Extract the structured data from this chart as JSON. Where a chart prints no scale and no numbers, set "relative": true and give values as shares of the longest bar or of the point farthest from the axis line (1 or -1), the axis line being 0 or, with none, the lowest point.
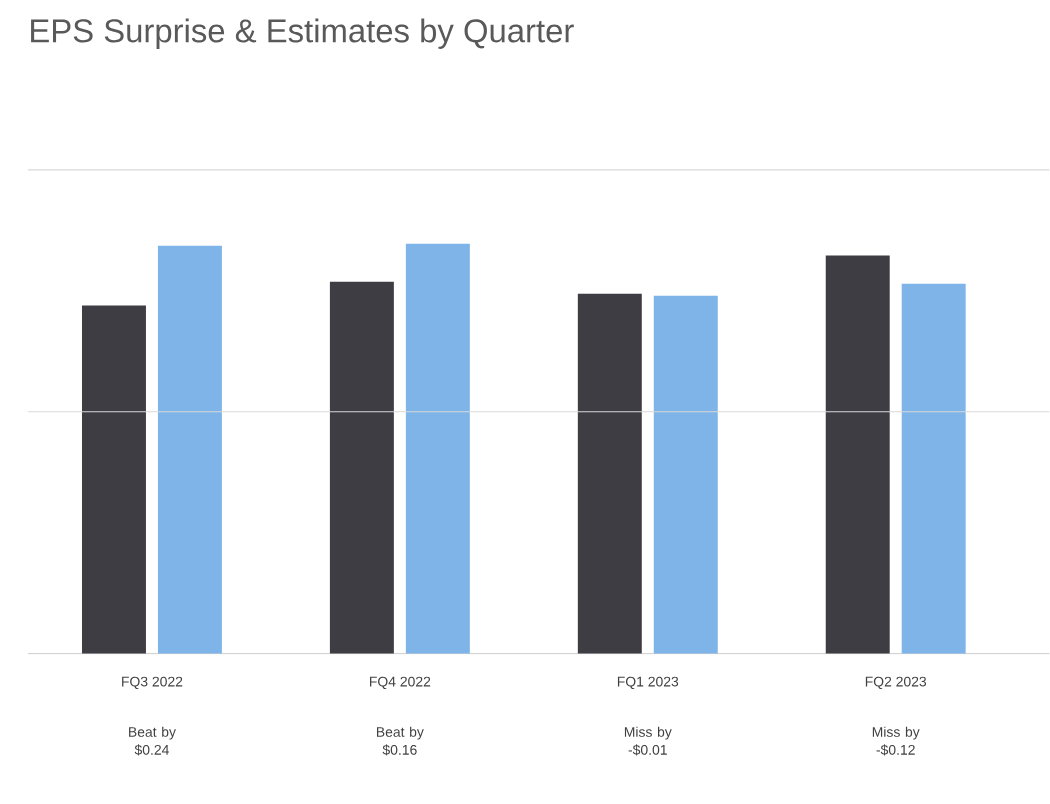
{
  "chart_data": {
    "type": "bar",
    "title": "EPS Surprise & Estimates by Quarter",
    "categories": [
      "FQ3 2022",
      "FQ4 2022",
      "FQ1 2023",
      "FQ2 2023"
    ],
    "relative": true,
    "ref_lines": [
      {
        "axis": "y",
        "value": 0.59,
        "color": "#d9d9d9"
      },
      {
        "axis": "y",
        "value": 1.18,
        "color": "#d9d9d9"
      }
    ],
    "series": [
      {
        "color": "#3e3d44",
        "values": [
          0.849,
          0.907,
          0.878,
          0.971
        ]
      },
      {
        "color": "#7eb4e8",
        "values": [
          0.995,
          1.0,
          0.873,
          0.902
        ]
      }
    ],
    "annotations": [
      "Beat by $0.24",
      "Beat by $0.16",
      "Miss by -$0.01",
      "Miss by -$0.12"
    ]
  }
}
